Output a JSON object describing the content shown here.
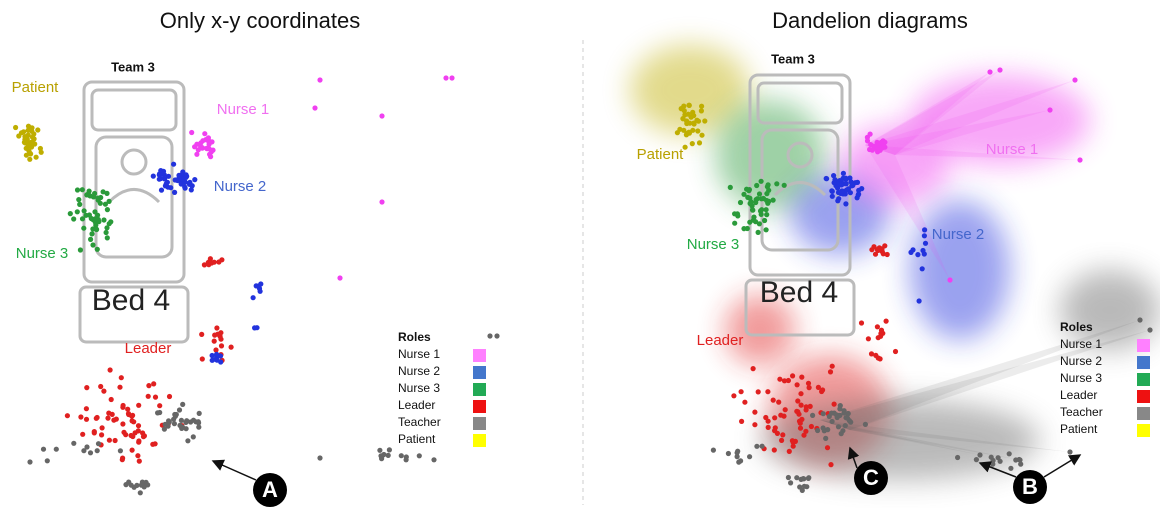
{
  "panels": [
    {
      "title": "Only x-y coordinates",
      "team": "Team 3",
      "bed": "Bed 4",
      "labels": {
        "patient": "Patient",
        "nurse1": "Nurse 1",
        "nurse2": "Nurse 2",
        "nurse3": "Nurse 3",
        "leader": "Leader"
      },
      "callouts": [
        "A"
      ]
    },
    {
      "title": "Dandelion diagrams",
      "team": "Team 3",
      "bed": "Bed 4",
      "labels": {
        "patient": "Patient",
        "nurse1": "Nurse 1",
        "nurse2": "Nurse 2",
        "nurse3": "Nurse 3",
        "leader": "Leader"
      },
      "callouts": [
        "C",
        "B"
      ]
    }
  ],
  "legend": {
    "title": "Roles",
    "items": [
      {
        "label": "Nurse 1",
        "color": "#ff80ff"
      },
      {
        "label": "Nurse 2",
        "color": "#4477cc"
      },
      {
        "label": "Nurse 3",
        "color": "#22aa55"
      },
      {
        "label": "Leader",
        "color": "#ee1111"
      },
      {
        "label": "Teacher",
        "color": "#888888"
      },
      {
        "label": "Patient",
        "color": "#ffff00"
      }
    ]
  }
}
